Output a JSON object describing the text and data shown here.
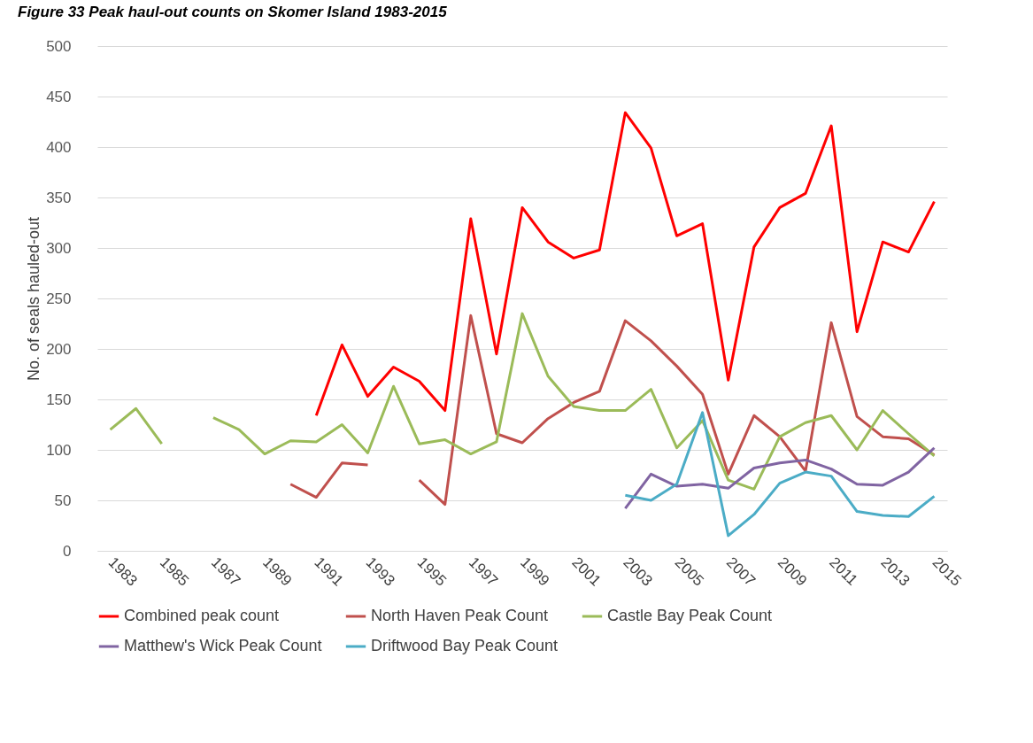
{
  "chart_data": {
    "type": "line",
    "title": "Figure 33 Peak haul-out counts on Skomer Island 1983-2015",
    "ylabel": "No. of seals hauled-out",
    "categories": [
      "1983",
      null,
      "1985",
      null,
      "1987",
      null,
      "1989",
      null,
      "1991",
      null,
      "1993",
      null,
      "1995",
      null,
      "1997",
      null,
      "1999",
      null,
      "2001",
      null,
      "2003",
      null,
      "2005",
      null,
      "2007",
      null,
      "2009",
      null,
      "2011",
      null,
      "2013",
      null,
      "2015"
    ],
    "series": [
      {
        "name": "Combined peak count",
        "color": "#ff0000",
        "values": [
          null,
          null,
          null,
          null,
          null,
          null,
          null,
          null,
          134,
          204,
          153,
          182,
          168,
          139,
          329,
          195,
          340,
          306,
          290,
          298,
          434,
          399,
          312,
          324,
          169,
          301,
          340,
          354,
          421,
          217,
          306,
          296,
          346
        ]
      },
      {
        "name": "North Haven Peak Count",
        "color": "#c0504d",
        "values": [
          null,
          null,
          null,
          null,
          null,
          null,
          null,
          66,
          53,
          87,
          85,
          null,
          70,
          46,
          233,
          116,
          107,
          131,
          147,
          158,
          228,
          208,
          183,
          155,
          76,
          134,
          113,
          79,
          226,
          133,
          113,
          111,
          95
        ]
      },
      {
        "name": "Castle Bay Peak Count",
        "color": "#9bbb59",
        "values": [
          120,
          141,
          106,
          null,
          132,
          120,
          96,
          109,
          108,
          125,
          97,
          163,
          106,
          110,
          96,
          108,
          235,
          173,
          143,
          139,
          139,
          160,
          102,
          129,
          70,
          61,
          113,
          127,
          134,
          100,
          139,
          116,
          94
        ]
      },
      {
        "name": "Matthew's Wick Peak Count",
        "color": "#8064a2",
        "values": [
          null,
          null,
          null,
          null,
          null,
          null,
          null,
          null,
          null,
          null,
          null,
          null,
          null,
          null,
          null,
          null,
          null,
          null,
          null,
          null,
          42,
          76,
          64,
          66,
          62,
          82,
          87,
          90,
          81,
          66,
          65,
          78,
          102
        ]
      },
      {
        "name": "Driftwood Bay Peak Count",
        "color": "#4bacc6",
        "values": [
          null,
          null,
          null,
          null,
          null,
          null,
          null,
          null,
          null,
          null,
          null,
          null,
          null,
          null,
          null,
          null,
          null,
          null,
          null,
          null,
          55,
          50,
          66,
          137,
          15,
          36,
          67,
          78,
          74,
          39,
          35,
          34,
          54
        ]
      }
    ],
    "ylim": [
      0,
      500
    ],
    "yticks": [
      0,
      50,
      100,
      150,
      200,
      250,
      300,
      350,
      400,
      450,
      500
    ],
    "grid": "y",
    "legend": "bottom",
    "line_style": "solid",
    "marker": "none"
  }
}
